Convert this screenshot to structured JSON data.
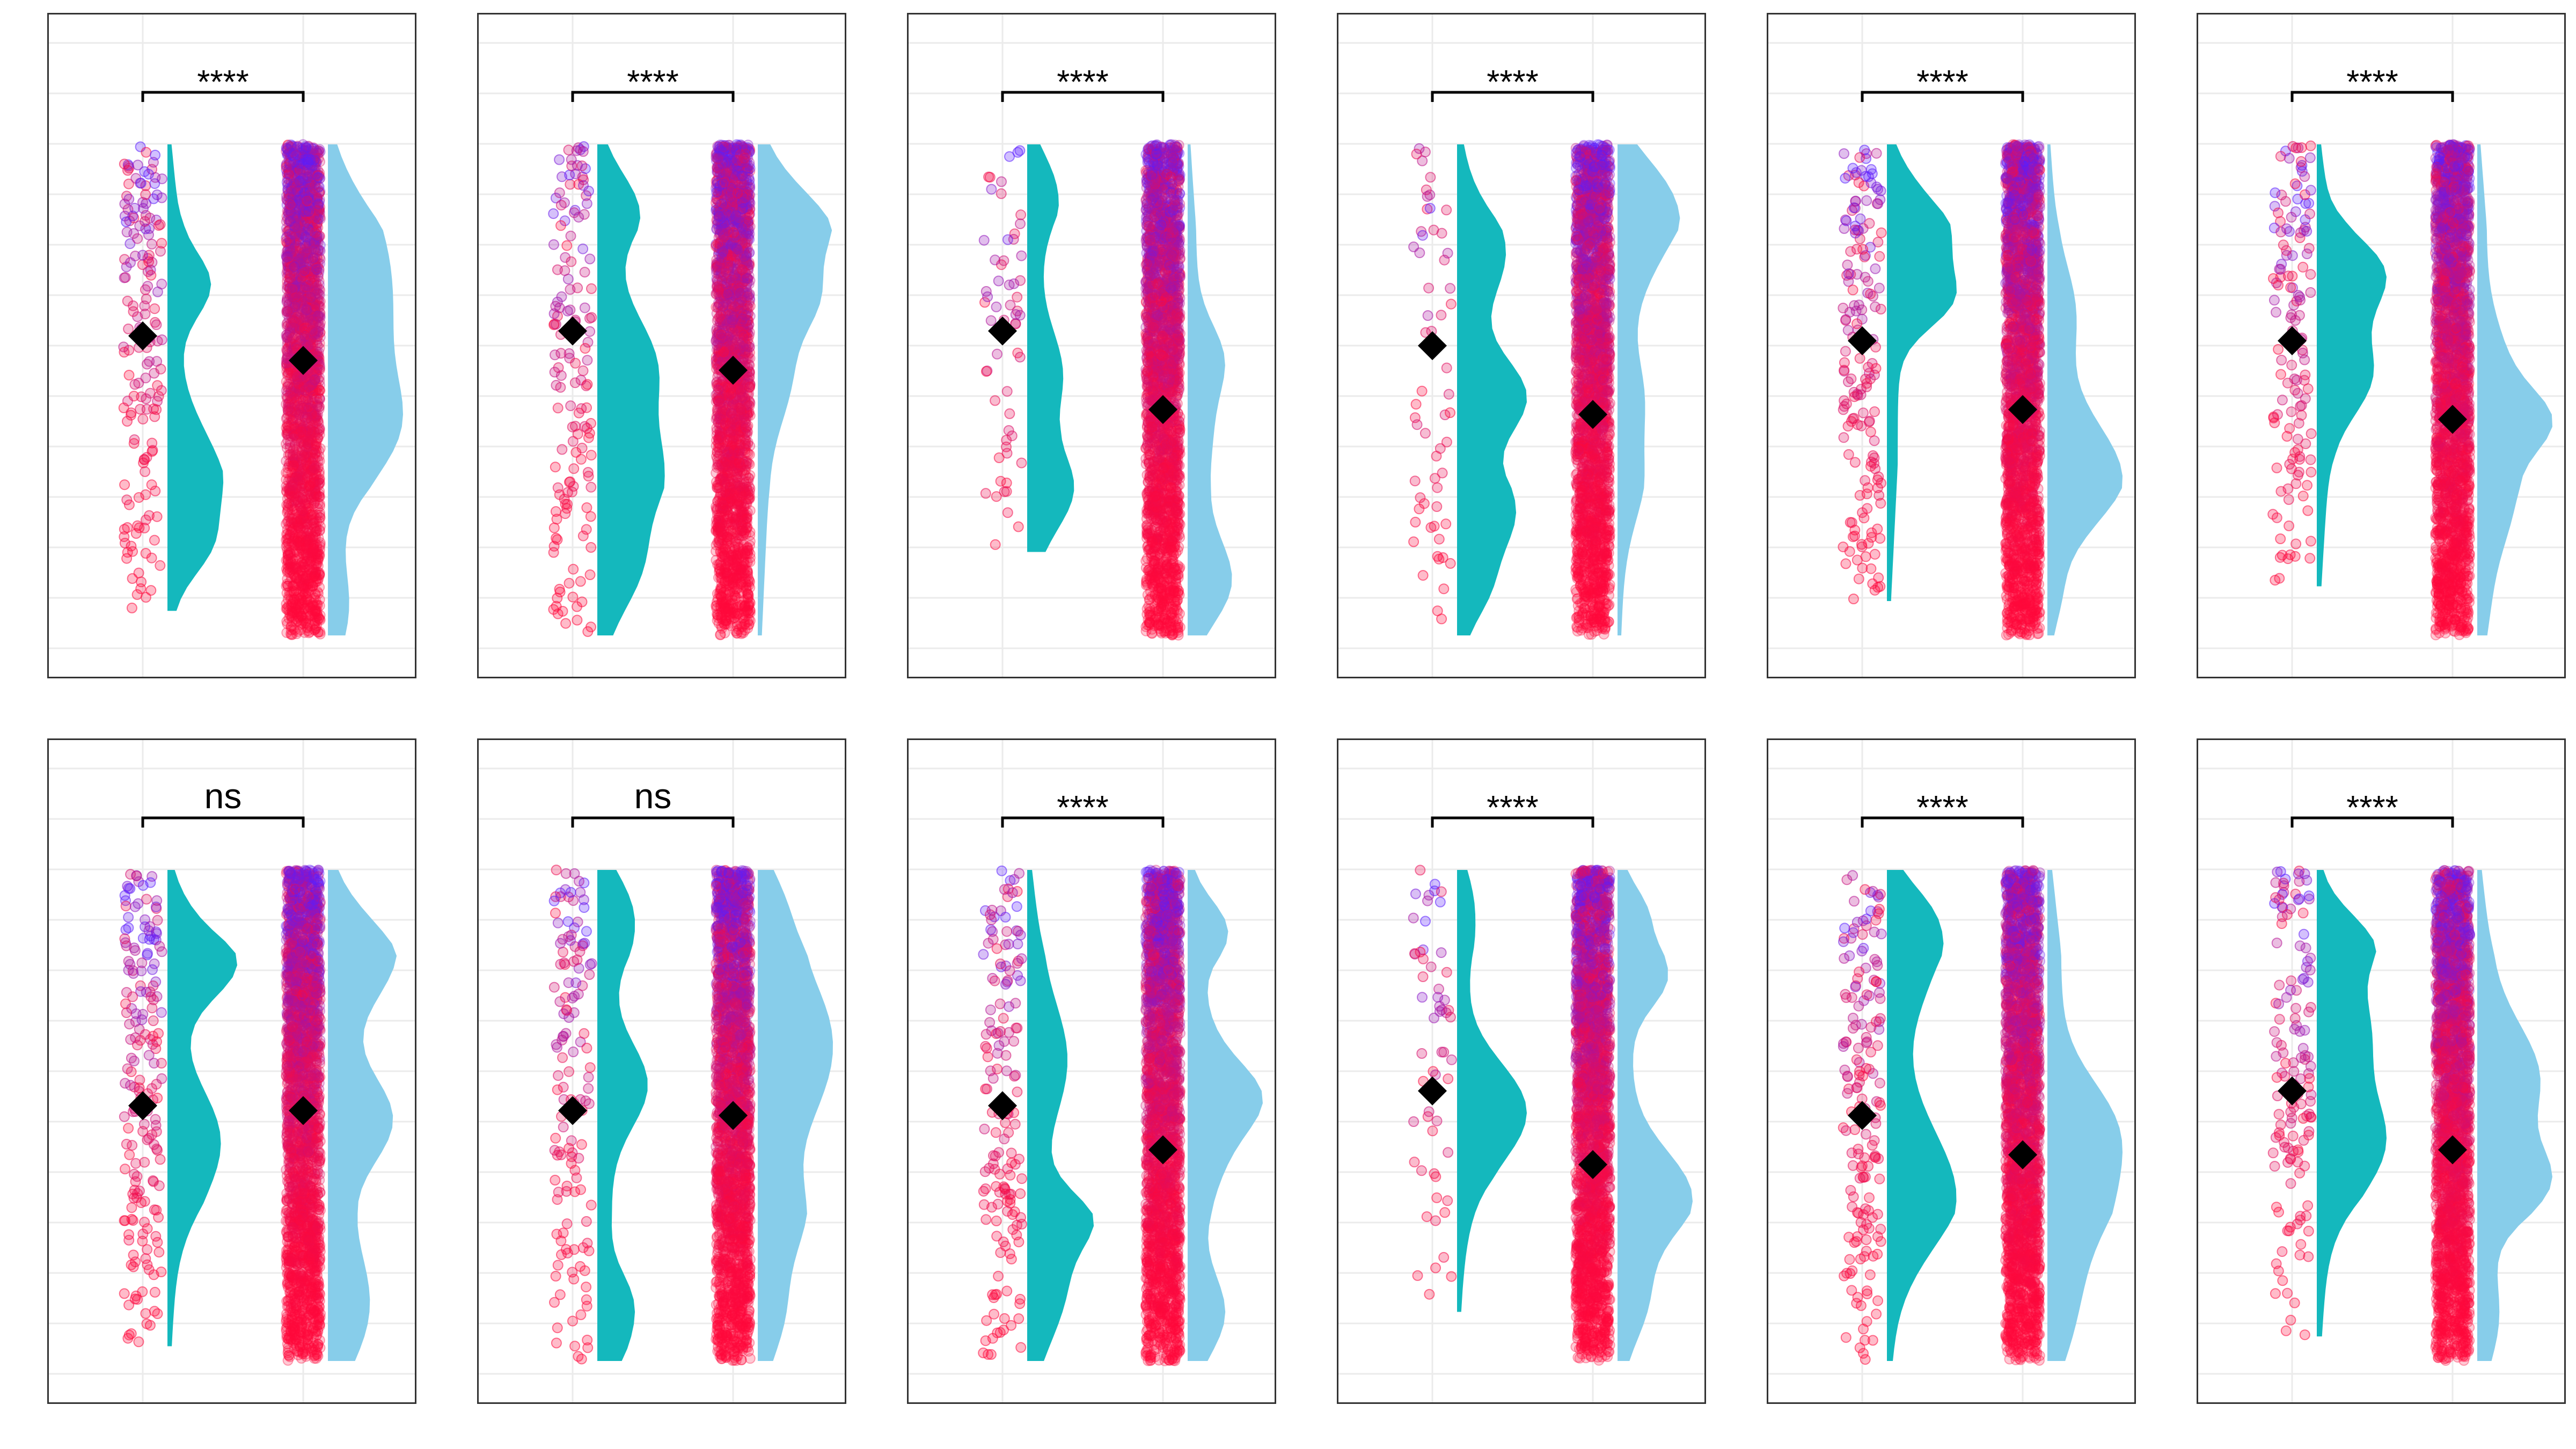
{
  "chart_data": {
    "type": "raincloud",
    "grid": true,
    "legend": "none",
    "layout": {
      "rows": 2,
      "cols": 6
    },
    "colors": {
      "cloud_left": "#14b8bd",
      "cloud_right": "#87cdea",
      "point_low": "#ff0a3c",
      "point_high": "#5a1eff",
      "mean_marker": "#000000",
      "panel_border": "#333333",
      "grid": "#ebebeb"
    },
    "panels": [
      {
        "label": "****",
        "left": {
          "mean": 0.61,
          "range": [
            0.05,
            1.0
          ],
          "n": 170
        },
        "right": {
          "mean": 0.56,
          "range": [
            0.0,
            1.0
          ],
          "n": 2600
        }
      },
      {
        "label": "****",
        "left": {
          "mean": 0.62,
          "range": [
            0.0,
            1.0
          ],
          "n": 150
        },
        "right": {
          "mean": 0.54,
          "range": [
            0.0,
            1.0
          ],
          "n": 2600
        }
      },
      {
        "label": "****",
        "left": {
          "mean": 0.62,
          "range": [
            0.17,
            1.0
          ],
          "n": 60
        },
        "right": {
          "mean": 0.46,
          "range": [
            0.0,
            1.0
          ],
          "n": 2600
        }
      },
      {
        "label": "****",
        "left": {
          "mean": 0.59,
          "range": [
            0.0,
            1.0
          ],
          "n": 60
        },
        "right": {
          "mean": 0.45,
          "range": [
            0.0,
            1.0
          ],
          "n": 2600
        }
      },
      {
        "label": "****",
        "left": {
          "mean": 0.6,
          "range": [
            0.07,
            1.0
          ],
          "n": 170
        },
        "right": {
          "mean": 0.46,
          "range": [
            0.0,
            1.0
          ],
          "n": 2600
        }
      },
      {
        "label": "****",
        "left": {
          "mean": 0.6,
          "range": [
            0.1,
            1.0
          ],
          "n": 140
        },
        "right": {
          "mean": 0.44,
          "range": [
            0.0,
            1.0
          ],
          "n": 2600
        }
      },
      {
        "label": "ns",
        "left": {
          "mean": 0.52,
          "range": [
            0.03,
            1.0
          ],
          "n": 190
        },
        "right": {
          "mean": 0.51,
          "range": [
            0.0,
            1.0
          ],
          "n": 2600
        }
      },
      {
        "label": "ns",
        "left": {
          "mean": 0.51,
          "range": [
            0.0,
            1.0
          ],
          "n": 140
        },
        "right": {
          "mean": 0.5,
          "range": [
            0.0,
            1.0
          ],
          "n": 2600
        }
      },
      {
        "label": "****",
        "left": {
          "mean": 0.52,
          "range": [
            0.0,
            1.0
          ],
          "n": 160
        },
        "right": {
          "mean": 0.43,
          "range": [
            0.0,
            1.0
          ],
          "n": 2600
        }
      },
      {
        "label": "****",
        "left": {
          "mean": 0.55,
          "range": [
            0.1,
            1.0
          ],
          "n": 60
        },
        "right": {
          "mean": 0.4,
          "range": [
            0.0,
            1.0
          ],
          "n": 2600
        }
      },
      {
        "label": "****",
        "left": {
          "mean": 0.5,
          "range": [
            0.0,
            1.0
          ],
          "n": 170
        },
        "right": {
          "mean": 0.42,
          "range": [
            0.0,
            1.0
          ],
          "n": 2600
        }
      },
      {
        "label": "****",
        "left": {
          "mean": 0.55,
          "range": [
            0.05,
            1.0
          ],
          "n": 140
        },
        "right": {
          "mean": 0.43,
          "range": [
            0.0,
            1.0
          ],
          "n": 2600
        }
      }
    ]
  }
}
